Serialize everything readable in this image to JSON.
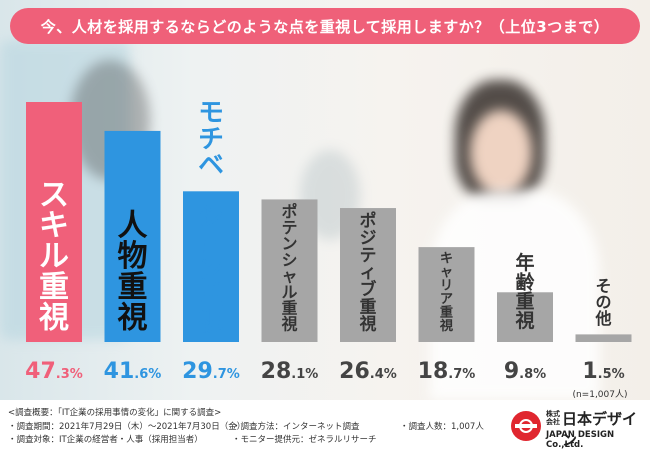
{
  "title": "今、人材を採用するならどのような点を重視して採用しますか？（上位3つまで）",
  "chart_data": {
    "type": "bar",
    "title": "今、人材を採用するならどのような点を重視して採用しますか？（上位3つまで）",
    "categories": [
      "スキル重視",
      "人物重視",
      "モチベーション重視",
      "ポテンシャル重視",
      "ポジティブ重視",
      "キャリア重視",
      "年齢重視",
      "その他"
    ],
    "values": [
      47.3,
      41.6,
      29.7,
      28.1,
      26.4,
      18.7,
      9.8,
      1.5
    ],
    "value_int": [
      "47",
      "41",
      "29",
      "28",
      "26",
      "18",
      "9",
      "1"
    ],
    "value_dec": [
      ".3%",
      ".6%",
      ".7%",
      ".1%",
      ".4%",
      ".7%",
      ".8%",
      ".5%"
    ],
    "colors": [
      "#f0607a",
      "#2e95e0",
      "#2e95e0",
      "#a6a6a6",
      "#a6a6a6",
      "#a6a6a6",
      "#a6a6a6",
      "#a6a6a6"
    ],
    "label_colors": [
      "#ffffff",
      "#111111",
      "#2e95e0",
      "#333333",
      "#333333",
      "#333333",
      "#333333",
      "#333333"
    ],
    "value_colors": [
      "#f0607a",
      "#2e95e0",
      "#2e95e0",
      "#444444",
      "#444444",
      "#444444",
      "#444444",
      "#444444"
    ],
    "ylim": [
      0,
      47.3
    ],
    "xlabel": "",
    "ylabel": "",
    "sample_note": "(n=1,007人)"
  },
  "footer": {
    "overview": "<調査概要：「IT企業の採用事情の変化」に関する調査>",
    "period": "・調査期間：2021年7月29日（木）～2021年7月30日（金）",
    "target": "・調査対象：IT企業の経営者・人事（採用担当者）",
    "method": "・調査方法：インターネット調査",
    "provider": "・モニター提供元：ゼネラルリサーチ",
    "count": "・調査人数：1,007人"
  },
  "logo": {
    "kabushiki": "株式会社",
    "name": "日本デザイン",
    "en": "JAPAN DESIGN Co.,Ltd.",
    "accent": "#e0262f"
  }
}
